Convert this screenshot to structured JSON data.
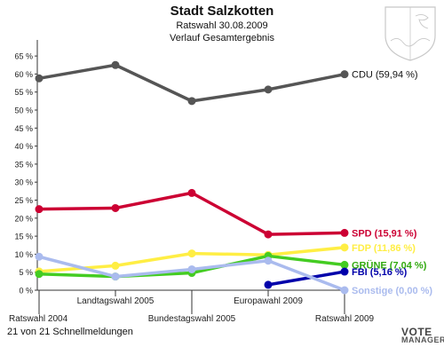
{
  "header": {
    "title": "Stadt Salzkotten",
    "subtitle": "Ratswahl 30.08.2009",
    "caption": "Verlauf Gesamtergebnis"
  },
  "footer": {
    "status": "21 von 21 Schnellmeldungen"
  },
  "logo": {
    "line1": "VOTE",
    "line2": "MANAGER"
  },
  "chart_data": {
    "type": "line",
    "title": "Stadt Salzkotten",
    "subtitle": "Ratswahl 30.08.2009 — Verlauf Gesamtergebnis",
    "categories": [
      "Ratswahl 2004",
      "Landtagswahl 2005",
      "Bundestagswahl 2005",
      "Europawahl 2009",
      "Ratswahl 2009"
    ],
    "ylim": [
      0,
      67
    ],
    "yticks": [
      "0 %",
      "5 %",
      "10 %",
      "15 %",
      "20 %",
      "25 %",
      "30 %",
      "35 %",
      "40 %",
      "45 %",
      "50 %",
      "55 %",
      "60 %",
      "65 %"
    ],
    "grid": false,
    "series": [
      {
        "name": "CDU",
        "label": "CDU (59,94 %)",
        "color": "#555555",
        "labelColor": "#111111",
        "values": [
          58.8,
          62.5,
          52.5,
          55.7,
          59.94
        ]
      },
      {
        "name": "SPD",
        "label": "SPD (15,91 %)",
        "color": "#cc0033",
        "labelColor": "#cc0033",
        "values": [
          22.5,
          22.8,
          27.0,
          15.5,
          15.91
        ]
      },
      {
        "name": "FDP",
        "label": "FDP (11,86 %)",
        "color": "#ffee44",
        "labelColor": "#ffee44",
        "values": [
          5.2,
          6.8,
          10.2,
          9.8,
          11.86
        ]
      },
      {
        "name": "GRÜNE",
        "label": "GRÜNE (7,04 %)",
        "color": "#44cc22",
        "labelColor": "#33aa11",
        "values": [
          4.5,
          3.8,
          4.8,
          9.5,
          7.04
        ]
      },
      {
        "name": "FBI",
        "label": "FBI (5,16 %)",
        "color": "#0000aa",
        "labelColor": "#0000aa",
        "values": [
          null,
          null,
          null,
          1.5,
          5.16
        ]
      },
      {
        "name": "Sonstige",
        "label": "Sonstige (0,00 %)",
        "color": "#aabbee",
        "labelColor": "#aabbee",
        "values": [
          9.3,
          3.8,
          5.8,
          8.2,
          0.0
        ]
      }
    ]
  }
}
